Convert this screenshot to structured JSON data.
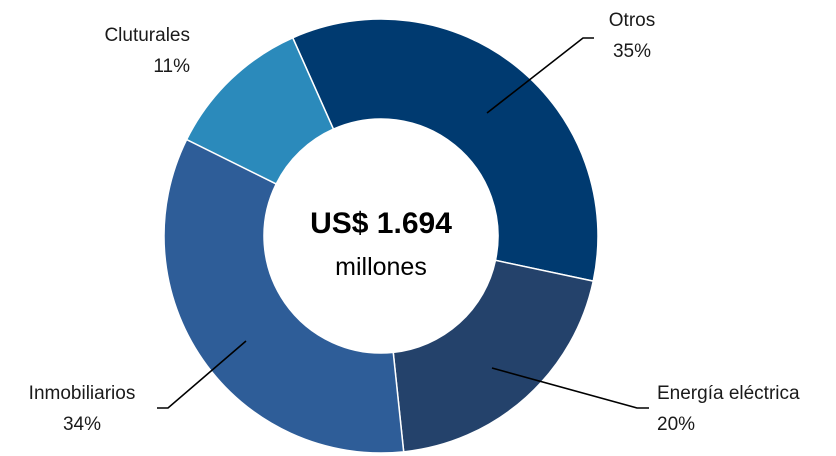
{
  "chart_data": {
    "type": "pie",
    "variant": "donut",
    "center": {
      "value": "US$ 1.694",
      "unit": "millones"
    },
    "slices": [
      {
        "label": "Otros",
        "percent_label": "35%",
        "value": 35,
        "color": "#003a70"
      },
      {
        "label": "Energía eléctrica",
        "percent_label": "20%",
        "value": 20,
        "color": "#24426b"
      },
      {
        "label": "Inmobiliarios",
        "percent_label": "34%",
        "value": 34,
        "color": "#2e5d98"
      },
      {
        "label": "Cluturales",
        "percent_label": "11%",
        "value": 11,
        "color": "#2b8abb"
      }
    ],
    "legend": "none",
    "data_labels": "outside-with-leader-lines"
  }
}
